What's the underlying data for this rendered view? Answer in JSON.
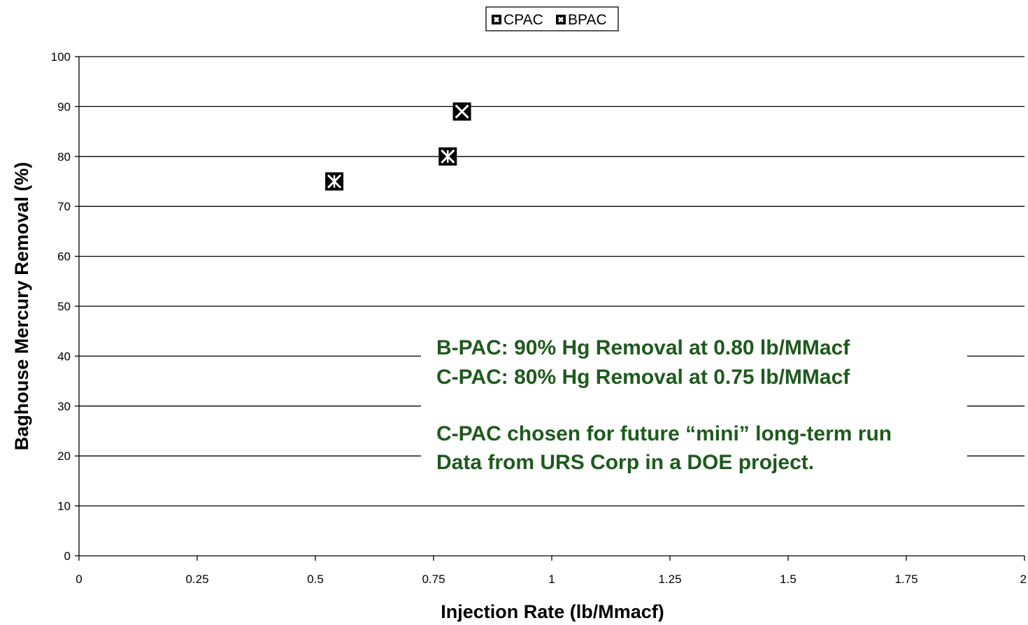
{
  "chart_data": {
    "type": "scatter",
    "xlabel": "Injection Rate (lb/Mmacf)",
    "ylabel": "Baghouse Mercury Removal (%)",
    "xlim": [
      0,
      2
    ],
    "ylim": [
      0,
      100
    ],
    "x_ticks": [
      0,
      0.25,
      0.5,
      0.75,
      1,
      1.25,
      1.5,
      1.75,
      2
    ],
    "x_tick_labels": [
      "0",
      "0.25",
      "0.5",
      "0.75",
      "1",
      "1.25",
      "1.5",
      "1.75",
      "2"
    ],
    "y_ticks": [
      0,
      10,
      20,
      30,
      40,
      50,
      60,
      70,
      80,
      90,
      100
    ],
    "y_tick_labels": [
      "0",
      "10",
      "20",
      "30",
      "40",
      "50",
      "60",
      "70",
      "80",
      "90",
      "100"
    ],
    "grid": "horizontal",
    "legend_position": "top-center",
    "series": [
      {
        "name": "CPAC",
        "marker": "box-asterisk",
        "points": [
          {
            "x": 0.54,
            "y": 75
          },
          {
            "x": 0.78,
            "y": 80
          }
        ]
      },
      {
        "name": "BPAC",
        "marker": "box-x",
        "points": [
          {
            "x": 0.81,
            "y": 89
          }
        ]
      }
    ],
    "annotations": [
      "B-PAC: 90% Hg Removal at 0.80 lb/MMacf",
      "C-PAC: 80% Hg Removal at 0.75 lb/MMacf",
      "C-PAC chosen for future “mini” long-term run",
      "Data from URS Corp in a DOE project."
    ],
    "colors": {
      "annotation": "#1e5a1e",
      "marker": "#000000",
      "grid": "#000000"
    }
  }
}
